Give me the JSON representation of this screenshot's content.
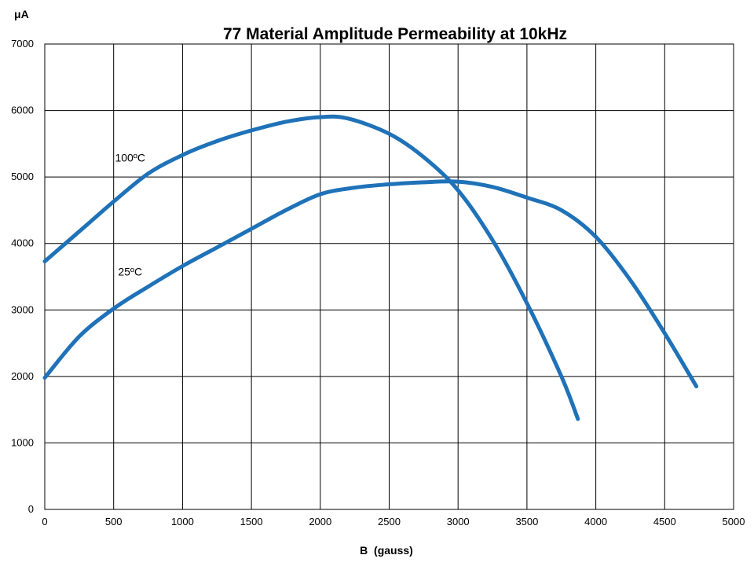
{
  "chart_data": {
    "type": "line",
    "title": "77 Material Amplitude Permeability at 10kHz",
    "xlabel": "B  (gauss)",
    "ylabel": "μA",
    "xlim": [
      0,
      5000
    ],
    "ylim": [
      0,
      7000
    ],
    "x_ticks": [
      "0",
      "500",
      "1000",
      "1500",
      "2000",
      "2500",
      "3000",
      "3500",
      "4000",
      "4500",
      "5000"
    ],
    "y_ticks": [
      "0",
      "1000",
      "2000",
      "3000",
      "4000",
      "5000",
      "6000",
      "7000"
    ],
    "grid": true,
    "line_color": "#1f72b8",
    "series": [
      {
        "name": "100ºC",
        "x": [
          0,
          250,
          500,
          750,
          1000,
          1250,
          1500,
          1750,
          2000,
          2200,
          2500,
          2750,
          3000,
          3250,
          3500,
          3750,
          3870
        ],
        "y": [
          3730,
          4180,
          4630,
          5050,
          5330,
          5540,
          5700,
          5830,
          5900,
          5880,
          5650,
          5300,
          4800,
          4050,
          3100,
          2000,
          1360
        ]
      },
      {
        "name": "25ºC",
        "x": [
          0,
          250,
          500,
          750,
          1000,
          1250,
          1500,
          1750,
          2000,
          2250,
          2500,
          2750,
          3000,
          3250,
          3500,
          3750,
          4000,
          4250,
          4500,
          4730
        ],
        "y": [
          1980,
          2600,
          3020,
          3350,
          3660,
          3940,
          4220,
          4500,
          4740,
          4840,
          4890,
          4920,
          4930,
          4850,
          4690,
          4500,
          4100,
          3450,
          2650,
          1850
        ]
      }
    ],
    "annotations": [
      {
        "text": "100ºC",
        "x": 620,
        "y": 5230
      },
      {
        "text": "25ºC",
        "x": 620,
        "y": 3520
      }
    ]
  }
}
